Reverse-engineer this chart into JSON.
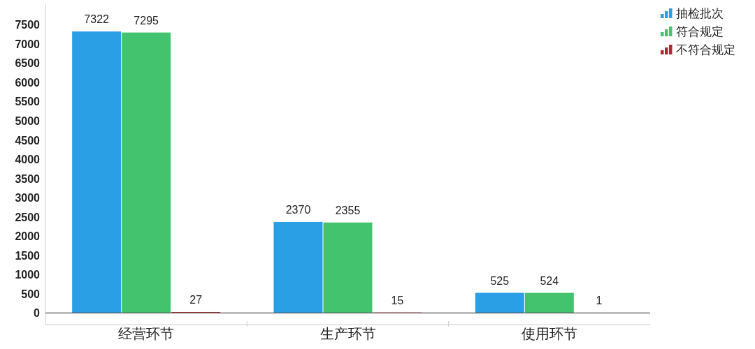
{
  "chart_data": {
    "type": "bar",
    "categories": [
      "经营环节",
      "生产环节",
      "使用环节"
    ],
    "series": [
      {
        "name": "抽检批次",
        "color": "#2b9fe6",
        "values": [
          7322,
          2370,
          525
        ]
      },
      {
        "name": "符合规定",
        "color": "#44c36f",
        "values": [
          7295,
          2355,
          524
        ]
      },
      {
        "name": "不符合规定",
        "color": "#b3282b",
        "values": [
          27,
          15,
          1
        ]
      }
    ],
    "ylim": [
      -300,
      8050
    ],
    "yticks": [
      0,
      500,
      1000,
      1500,
      2000,
      2500,
      3000,
      3500,
      4000,
      4500,
      5000,
      5500,
      6000,
      6500,
      7000,
      7500
    ],
    "ref_lines": [
      {
        "axis": "y",
        "value": 0,
        "color": "#555555"
      }
    ],
    "data_labels": true,
    "grid": false,
    "legend": "top right"
  }
}
